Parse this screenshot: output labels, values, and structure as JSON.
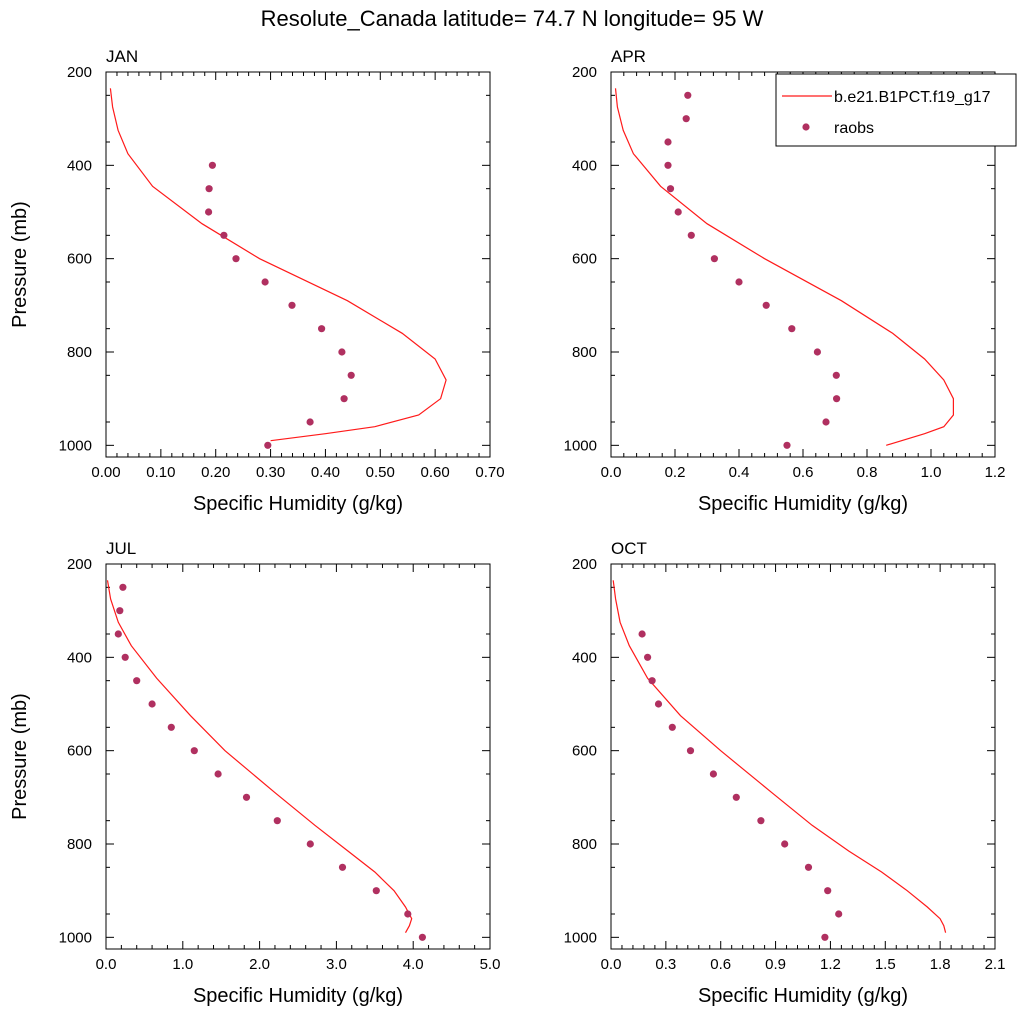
{
  "figure": {
    "title": "Resolute_Canada  latitude= 74.7 N longitude= 95 W"
  },
  "legend": {
    "model_label": "b.e21.B1PCT.f19_g17",
    "obs_label": "raobs"
  },
  "colors": {
    "model_line": "#ff1a1a",
    "obs_marker": "#b03060",
    "axis": "#000000"
  },
  "chart_data": [
    {
      "type": "line",
      "title": "JAN",
      "xlabel": "Specific Humidity (g/kg)",
      "ylabel": "Pressure (mb)",
      "xlim": [
        0,
        0.7
      ],
      "ylim": [
        200,
        1025
      ],
      "y_inverted": true,
      "xticks": [
        "0.00",
        "0.10",
        "0.20",
        "0.30",
        "0.40",
        "0.50",
        "0.60",
        "0.70"
      ],
      "yticks": [
        "200",
        "400",
        "600",
        "800",
        "1000"
      ],
      "series": [
        {
          "name": "b.e21.B1PCT.f19_g17",
          "kind": "line",
          "pressure": [
            235,
            275,
            325,
            375,
            445,
            525,
            600,
            690,
            760,
            815,
            860,
            900,
            935,
            960,
            975,
            990
          ],
          "values": [
            0.008,
            0.012,
            0.022,
            0.04,
            0.085,
            0.175,
            0.28,
            0.44,
            0.54,
            0.6,
            0.62,
            0.61,
            0.57,
            0.49,
            0.4,
            0.3
          ]
        },
        {
          "name": "raobs",
          "kind": "scatter",
          "pressure": [
            400,
            450,
            500,
            550,
            600,
            650,
            700,
            750,
            800,
            850,
            900,
            950,
            1000
          ],
          "values": [
            0.194,
            0.188,
            0.187,
            0.215,
            0.237,
            0.29,
            0.339,
            0.393,
            0.43,
            0.447,
            0.434,
            0.372,
            0.295
          ]
        }
      ]
    },
    {
      "type": "line",
      "title": "APR",
      "xlabel": "Specific Humidity (g/kg)",
      "ylabel": "",
      "xlim": [
        0,
        1.2
      ],
      "ylim": [
        200,
        1025
      ],
      "y_inverted": true,
      "xticks": [
        "0.0",
        "0.2",
        "0.4",
        "0.6",
        "0.8",
        "1.0",
        "1.2"
      ],
      "yticks": [
        "200",
        "400",
        "600",
        "800",
        "1000"
      ],
      "series": [
        {
          "name": "b.e21.B1PCT.f19_g17",
          "kind": "line",
          "pressure": [
            235,
            275,
            325,
            375,
            445,
            525,
            600,
            690,
            760,
            815,
            860,
            900,
            935,
            960,
            975,
            1000
          ],
          "values": [
            0.014,
            0.02,
            0.038,
            0.07,
            0.155,
            0.3,
            0.48,
            0.72,
            0.88,
            0.98,
            1.04,
            1.07,
            1.07,
            1.04,
            0.98,
            0.86
          ]
        },
        {
          "name": "raobs",
          "kind": "scatter",
          "pressure": [
            250,
            300,
            350,
            400,
            450,
            500,
            550,
            600,
            650,
            700,
            750,
            800,
            850,
            900,
            950,
            1000
          ],
          "values": [
            0.24,
            0.235,
            0.178,
            0.178,
            0.186,
            0.21,
            0.251,
            0.323,
            0.4,
            0.485,
            0.565,
            0.645,
            0.704,
            0.705,
            0.672,
            0.55
          ]
        }
      ]
    },
    {
      "type": "line",
      "title": "JUL",
      "xlabel": "Specific Humidity (g/kg)",
      "ylabel": "Pressure (mb)",
      "xlim": [
        0,
        5.0
      ],
      "ylim": [
        200,
        1025
      ],
      "y_inverted": true,
      "xticks": [
        "0.0",
        "1.0",
        "2.0",
        "3.0",
        "4.0",
        "5.0"
      ],
      "yticks": [
        "200",
        "400",
        "600",
        "800",
        "1000"
      ],
      "series": [
        {
          "name": "b.e21.B1PCT.f19_g17",
          "kind": "line",
          "pressure": [
            235,
            275,
            325,
            375,
            445,
            525,
            600,
            690,
            760,
            815,
            860,
            900,
            935,
            960,
            975,
            990
          ],
          "values": [
            0.02,
            0.06,
            0.16,
            0.33,
            0.66,
            1.1,
            1.55,
            2.2,
            2.72,
            3.15,
            3.5,
            3.75,
            3.9,
            3.98,
            3.95,
            3.9
          ]
        },
        {
          "name": "raobs",
          "kind": "scatter",
          "pressure": [
            250,
            300,
            350,
            400,
            450,
            500,
            550,
            600,
            650,
            700,
            750,
            800,
            850,
            900,
            950,
            1000
          ],
          "values": [
            0.22,
            0.18,
            0.16,
            0.25,
            0.4,
            0.6,
            0.85,
            1.15,
            1.46,
            1.83,
            2.23,
            2.66,
            3.08,
            3.52,
            3.93,
            4.12
          ]
        }
      ]
    },
    {
      "type": "line",
      "title": "OCT",
      "xlabel": "Specific Humidity (g/kg)",
      "ylabel": "",
      "xlim": [
        0,
        2.1
      ],
      "ylim": [
        200,
        1025
      ],
      "y_inverted": true,
      "xticks": [
        "0.0",
        "0.3",
        "0.6",
        "0.9",
        "1.2",
        "1.5",
        "1.8",
        "2.1"
      ],
      "yticks": [
        "200",
        "400",
        "600",
        "800",
        "1000"
      ],
      "series": [
        {
          "name": "b.e21.B1PCT.f19_g17",
          "kind": "line",
          "pressure": [
            235,
            275,
            325,
            375,
            445,
            525,
            600,
            690,
            760,
            815,
            860,
            900,
            935,
            960,
            975,
            990
          ],
          "values": [
            0.012,
            0.025,
            0.05,
            0.1,
            0.2,
            0.38,
            0.6,
            0.88,
            1.1,
            1.3,
            1.48,
            1.62,
            1.73,
            1.8,
            1.82,
            1.83
          ]
        },
        {
          "name": "raobs",
          "kind": "scatter",
          "pressure": [
            350,
            400,
            450,
            500,
            550,
            600,
            650,
            700,
            750,
            800,
            850,
            900,
            950,
            1000
          ],
          "values": [
            0.17,
            0.2,
            0.225,
            0.26,
            0.335,
            0.435,
            0.56,
            0.685,
            0.82,
            0.95,
            1.08,
            1.185,
            1.245,
            1.17
          ]
        }
      ]
    }
  ]
}
